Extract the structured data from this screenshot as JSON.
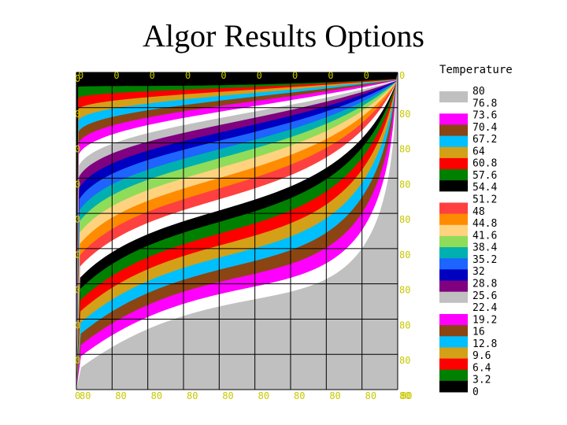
{
  "slide": {
    "title": "Algor Results Options"
  },
  "chart_data": {
    "type": "heatmap",
    "title": "",
    "legend": {
      "title": "Temperature",
      "placement": "right",
      "labels": [
        "80",
        "76.8",
        "73.6",
        "70.4",
        "67.2",
        "64",
        "60.8",
        "57.6",
        "54.4",
        "51.2",
        "48",
        "44.8",
        "41.6",
        "38.4",
        "35.2",
        "32",
        "28.8",
        "25.6",
        "22.4",
        "19.2",
        "16",
        "12.8",
        "9.6",
        "6.4",
        "3.2",
        "0"
      ],
      "colors": [
        "#c0c0c0",
        "#ffffff",
        "#ff00ff",
        "#8b4513",
        "#00bfff",
        "#d4a017",
        "#ff0000",
        "#008000",
        "#000000",
        "#ffffff",
        "#ff4040",
        "#ff8c00",
        "#ffd27f",
        "#8fdc5a",
        "#00b0b0",
        "#1e64ff",
        "#0000c0",
        "#800080",
        "#c0c0c0",
        "#ffffff",
        "#ff00ff",
        "#8b4513",
        "#00bfff",
        "#d4a017",
        "#ff0000",
        "#008000",
        "#000000"
      ]
    },
    "left_tick_labels": [
      "0",
      "0",
      "0",
      "0",
      "0",
      "0",
      "0",
      "0",
      "0",
      "0"
    ],
    "top_tick_labels": [
      "0",
      "0",
      "0",
      "0",
      "0",
      "0",
      "0",
      "0",
      "0",
      "0"
    ],
    "right_tick_labels": [
      "",
      "80",
      "80",
      "80",
      "80",
      "80",
      "80",
      "80",
      "80",
      "80"
    ],
    "bottom_tick_labels": [
      "80",
      "80",
      "80",
      "80",
      "80",
      "80",
      "80",
      "80",
      "80",
      "80"
    ],
    "grid": true,
    "colormap": [
      "#000000",
      "#008000",
      "#ff0000",
      "#d4a017",
      "#00bfff",
      "#8b4513",
      "#ff00ff",
      "#ffffff",
      "#c0c0c0",
      "#800080",
      "#0000c0",
      "#1e64ff",
      "#00b0b0",
      "#8fdc5a",
      "#ffd27f",
      "#ff8c00",
      "#ff4040",
      "#ffffff",
      "#000000",
      "#008000",
      "#ff0000",
      "#d4a017",
      "#00bfff",
      "#8b4513",
      "#ff00ff",
      "#ffffff",
      "#c0c0c0"
    ]
  }
}
